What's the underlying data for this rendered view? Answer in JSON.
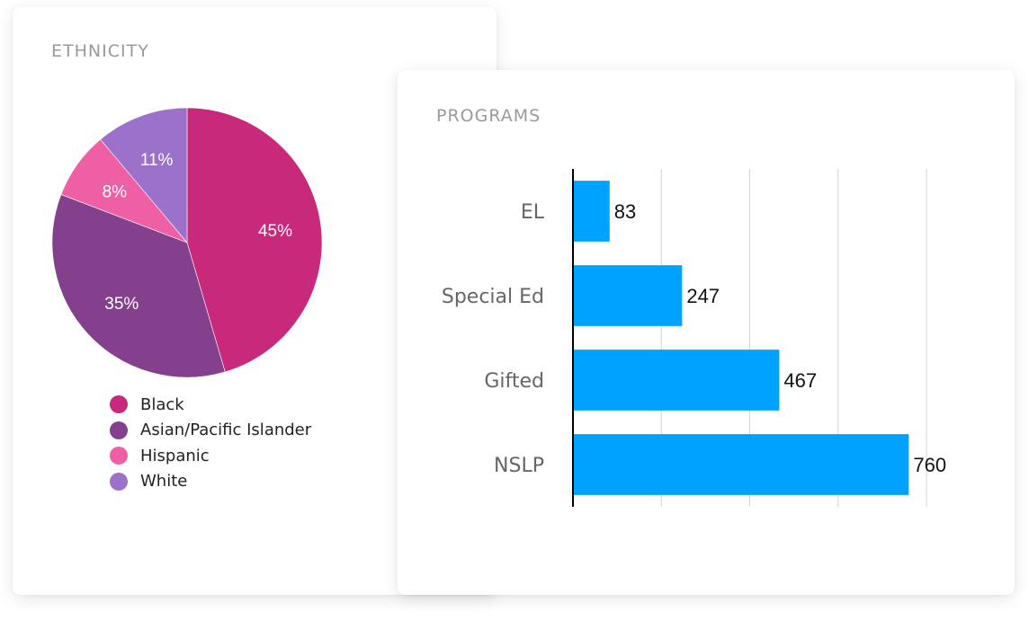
{
  "ethnicity": {
    "title": "ETHNICITY"
  },
  "programs": {
    "title": "PROGRAMS"
  },
  "chart_data": [
    {
      "type": "pie",
      "title": "ETHNICITY",
      "categories": [
        "Black",
        "Asian/Pacific Islander",
        "Hispanic",
        "White"
      ],
      "values": [
        45,
        35,
        8,
        11
      ],
      "labels": [
        "45%",
        "35%",
        "8%",
        "11%"
      ],
      "colors": [
        "#c8297a",
        "#84408c",
        "#ef5fa5",
        "#9b71c9"
      ],
      "legend_position": "bottom",
      "start": "top, clockwise"
    },
    {
      "type": "bar",
      "orientation": "horizontal",
      "title": "PROGRAMS",
      "categories": [
        "EL",
        "Special Ed",
        "Gifted",
        "NSLP"
      ],
      "values": [
        83,
        247,
        467,
        760
      ],
      "color": "#00a2ff",
      "xlim": [
        0,
        800
      ],
      "xticks": [
        0,
        200,
        400,
        600,
        800
      ],
      "grid": true,
      "show_tick_labels": false
    }
  ]
}
